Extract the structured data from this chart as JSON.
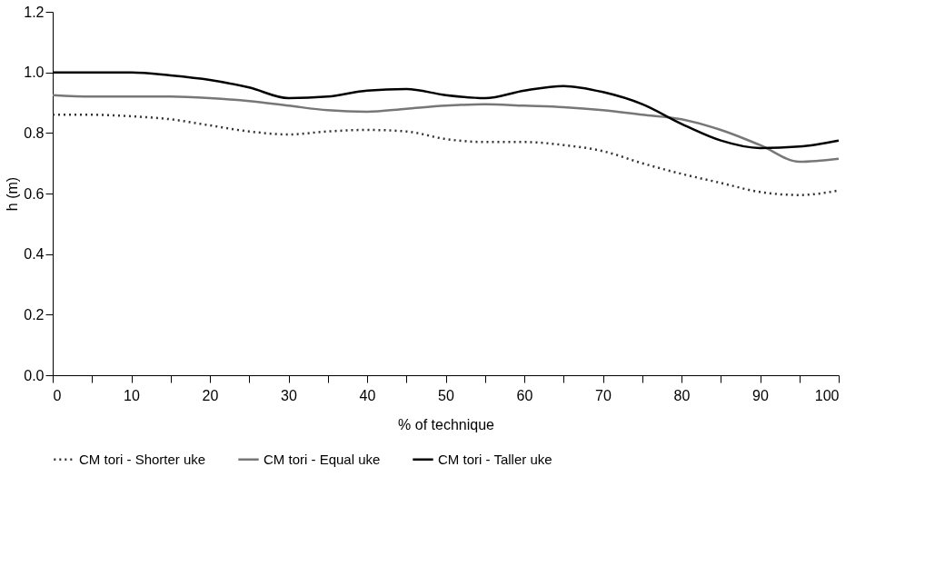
{
  "chart_data": {
    "type": "line",
    "xlabel": "% of technique",
    "ylabel": "h (m)",
    "x": [
      0,
      5,
      10,
      15,
      20,
      25,
      30,
      35,
      40,
      45,
      50,
      55,
      60,
      65,
      70,
      75,
      80,
      85,
      90,
      95,
      100
    ],
    "series": [
      {
        "name": "CM tori - Shorter uke",
        "color": "#333333",
        "line_style": "dotted",
        "values": [
          0.86,
          0.86,
          0.855,
          0.845,
          0.825,
          0.805,
          0.795,
          0.805,
          0.81,
          0.805,
          0.78,
          0.77,
          0.77,
          0.76,
          0.74,
          0.7,
          0.665,
          0.635,
          0.605,
          0.595,
          0.61
        ]
      },
      {
        "name": "CM tori - Equal uke",
        "color": "#777777",
        "line_style": "solid",
        "values": [
          0.925,
          0.92,
          0.92,
          0.92,
          0.915,
          0.905,
          0.89,
          0.875,
          0.87,
          0.88,
          0.89,
          0.895,
          0.89,
          0.885,
          0.875,
          0.86,
          0.845,
          0.81,
          0.76,
          0.705,
          0.715
        ]
      },
      {
        "name": "CM tori - Taller uke",
        "color": "#000000",
        "line_style": "solid",
        "values": [
          1.0,
          1.0,
          1.0,
          0.99,
          0.975,
          0.95,
          0.915,
          0.92,
          0.94,
          0.945,
          0.925,
          0.915,
          0.94,
          0.955,
          0.935,
          0.895,
          0.83,
          0.775,
          0.75,
          0.755,
          0.775
        ]
      }
    ],
    "xlim": [
      0,
      100
    ],
    "ylim": [
      0,
      1.2
    ],
    "xticks": [
      0,
      {
        "value": 5,
        "label": null
      },
      10,
      {
        "value": 15,
        "label": null
      },
      20,
      {
        "value": 25,
        "label": null
      },
      30,
      {
        "value": 35,
        "label": null
      },
      40,
      {
        "value": 45,
        "label": null
      },
      50,
      {
        "value": 55,
        "label": null
      },
      60,
      {
        "value": 65,
        "label": null
      },
      70,
      {
        "value": 75,
        "label": null
      },
      80,
      {
        "value": 85,
        "label": null
      },
      90,
      {
        "value": 95,
        "label": null
      },
      100
    ],
    "yticks": [
      {
        "value": 0,
        "label": "0.0"
      },
      {
        "value": 0.2,
        "label": "0.2"
      },
      {
        "value": 0.4,
        "label": "0.4"
      },
      {
        "value": 0.6,
        "label": "0.6"
      },
      {
        "value": 0.8,
        "label": "0.8"
      },
      {
        "value": 1.0,
        "label": "1.0"
      },
      {
        "value": 1.2,
        "label": "1.2"
      }
    ],
    "grid": false,
    "legend": "bottom"
  }
}
